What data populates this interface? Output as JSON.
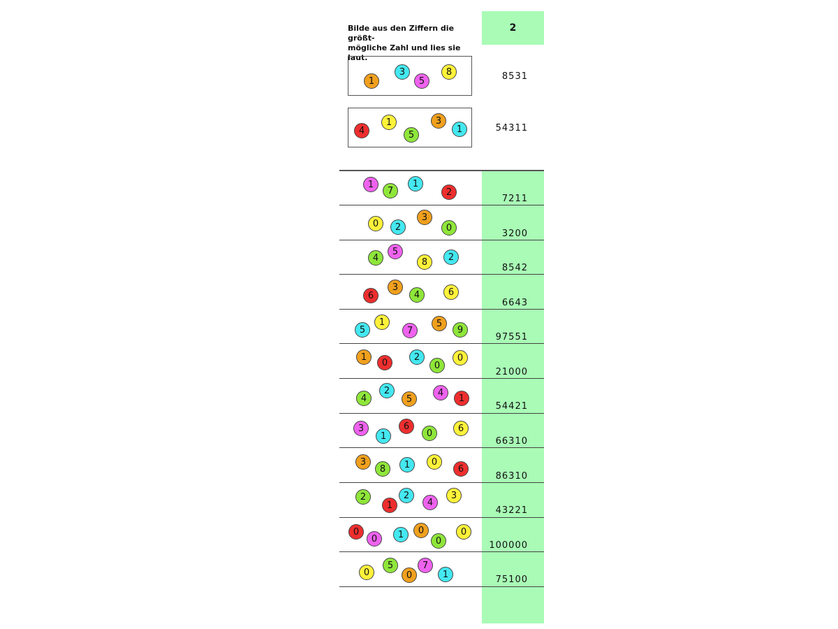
{
  "header": {
    "instruction": "Bilde aus den Ziffern die größt-\nmögliche Zahl und lies sie laut.",
    "number": "2"
  },
  "colors": {
    "orange": "#f0a01e",
    "cyan": "#44e8f0",
    "magenta": "#ee62ee",
    "yellow": "#fff23a",
    "red": "#ee2e2e",
    "green": "#8fe63a",
    "answer_column": "#a9fbb6"
  },
  "examples": [
    {
      "answer": "8531",
      "digits": [
        "1",
        "3",
        "5",
        "8"
      ]
    },
    {
      "answer": "54311",
      "digits": [
        "4",
        "1",
        "5",
        "3",
        "1"
      ]
    }
  ],
  "exercises": [
    {
      "answer": "7211",
      "digits": [
        "1",
        "7",
        "1",
        "2"
      ]
    },
    {
      "answer": "3200",
      "digits": [
        "0",
        "2",
        "3",
        "0"
      ]
    },
    {
      "answer": "8542",
      "digits": [
        "4",
        "5",
        "8",
        "2"
      ]
    },
    {
      "answer": "6643",
      "digits": [
        "6",
        "3",
        "4",
        "6"
      ]
    },
    {
      "answer": "97551",
      "digits": [
        "5",
        "1",
        "7",
        "5",
        "9"
      ]
    },
    {
      "answer": "21000",
      "digits": [
        "1",
        "0",
        "2",
        "0",
        "0"
      ]
    },
    {
      "answer": "54421",
      "digits": [
        "4",
        "2",
        "5",
        "4",
        "1"
      ]
    },
    {
      "answer": "66310",
      "digits": [
        "3",
        "1",
        "6",
        "0",
        "6"
      ]
    },
    {
      "answer": "86310",
      "digits": [
        "3",
        "8",
        "1",
        "0",
        "6"
      ]
    },
    {
      "answer": "43221",
      "digits": [
        "2",
        "1",
        "2",
        "4",
        "3"
      ]
    },
    {
      "answer": "100000",
      "digits": [
        "0",
        "0",
        "1",
        "0",
        "0",
        "0"
      ]
    },
    {
      "answer": "75100",
      "digits": [
        "0",
        "5",
        "0",
        "7",
        "1"
      ]
    }
  ]
}
